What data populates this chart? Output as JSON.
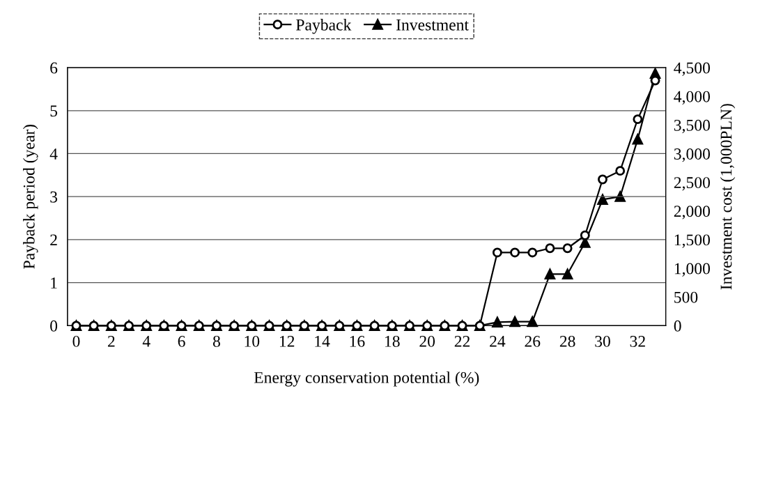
{
  "chart_data": {
    "type": "line",
    "xlabel": "Energy conservation potential (%)",
    "ylabel": "Payback period (year)",
    "y2label": "Investment cost (1,000PLN)",
    "x": [
      0,
      1,
      2,
      3,
      4,
      5,
      6,
      7,
      8,
      9,
      10,
      11,
      12,
      13,
      14,
      15,
      16,
      17,
      18,
      19,
      20,
      21,
      22,
      23,
      24,
      25,
      26,
      27,
      28,
      29,
      30,
      31,
      32,
      33
    ],
    "series": [
      {
        "name": "Payback",
        "color": "#000000",
        "marker": "circle",
        "values": [
          0,
          0,
          0,
          0,
          0,
          0,
          0,
          0,
          0,
          0,
          0,
          0,
          0,
          0,
          0,
          0,
          0,
          0,
          0,
          0,
          0,
          0,
          0,
          0,
          1.7,
          1.7,
          1.7,
          1.8,
          1.8,
          2.1,
          3.4,
          3.6,
          4.8,
          5.7
        ]
      },
      {
        "name": "Investment",
        "color": "#000000",
        "marker": "triangle",
        "axis": "y2",
        "values": [
          0,
          0,
          0,
          0,
          0,
          0,
          0,
          0,
          0,
          0,
          0,
          0,
          0,
          0,
          0,
          0,
          0,
          0,
          0,
          0,
          0,
          0,
          0,
          0,
          60,
          70,
          70,
          900,
          900,
          1450,
          2200,
          2250,
          3250,
          4400
        ]
      }
    ],
    "xlim": [
      -0.5,
      33.6
    ],
    "xticks": [
      0,
      2,
      4,
      6,
      8,
      10,
      12,
      14,
      16,
      18,
      20,
      22,
      24,
      26,
      28,
      30,
      32
    ],
    "ylim": [
      0,
      6
    ],
    "yticks": [
      0,
      1,
      2,
      3,
      4,
      5,
      6
    ],
    "y2lim": [
      0,
      4500
    ],
    "y2ticks": [
      0,
      500,
      {
        "value": 1000,
        "label": "1,000"
      },
      {
        "value": 1500,
        "label": "1,500"
      },
      {
        "value": 2000,
        "label": "2,000"
      },
      {
        "value": 2500,
        "label": "2,500"
      },
      {
        "value": 3000,
        "label": "3,000"
      },
      {
        "value": 3500,
        "label": "3,500"
      },
      {
        "value": 4000,
        "label": "4,000"
      },
      {
        "value": 4500,
        "label": "4,500"
      }
    ],
    "grid": "y",
    "legend": "top",
    "line_style": "solid"
  }
}
